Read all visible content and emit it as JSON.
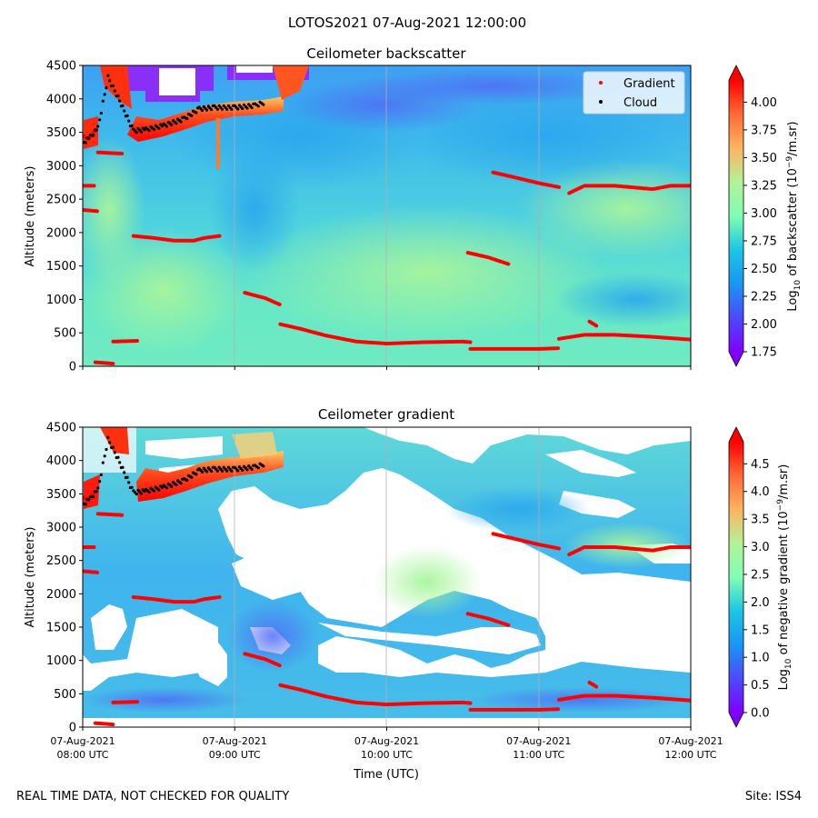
{
  "figure": {
    "suptitle": "LOTOS2021 07-Aug-2021 12:00:00",
    "footer_left": "REAL TIME DATA, NOT CHECKED FOR QUALITY",
    "footer_right": "Site: ISS4"
  },
  "chart_data": [
    {
      "type": "heatmap",
      "title": "Ceilometer backscatter",
      "xlabel": "",
      "ylabel": "Altitude (meters)",
      "x_range": [
        "2021-08-07T08:00:00Z",
        "2021-08-07T12:00:00Z"
      ],
      "x_tick_labels": [
        [
          "07-Aug-2021",
          "08:00 UTC"
        ],
        [
          "07-Aug-2021",
          "09:00 UTC"
        ],
        [
          "07-Aug-2021",
          "10:00 UTC"
        ],
        [
          "07-Aug-2021",
          "11:00 UTC"
        ],
        [
          "07-Aug-2021",
          "12:00 UTC"
        ]
      ],
      "x_tick_labels_visible": false,
      "ylim": [
        0,
        4500
      ],
      "y_ticks": [
        0,
        500,
        1000,
        1500,
        2000,
        2500,
        3000,
        3500,
        4000,
        4500
      ],
      "grid": "vertical",
      "colormap": "rainbow",
      "legend": {
        "placement": "top-right",
        "entries": [
          {
            "label": "Gradient",
            "color": "#ff0000",
            "marker": "dot"
          },
          {
            "label": "Cloud",
            "color": "#000000",
            "marker": "dot"
          }
        ]
      },
      "colorbar": {
        "label_parts": [
          "Log",
          "10",
          " of backscatter (10",
          "−9",
          "/m.sr)"
        ],
        "vmin": 1.75,
        "vmax": 4.2,
        "ticks": [
          1.75,
          2.0,
          2.25,
          2.5,
          2.75,
          3.0,
          3.25,
          3.5,
          3.75,
          4.0
        ],
        "tick_labels": [
          "1.75",
          "2.00",
          "2.25",
          "2.50",
          "2.75",
          "3.00",
          "3.25",
          "3.50",
          "3.75",
          "4.00"
        ],
        "extend": "both"
      },
      "gradient_layers": [
        {
          "t": [
            "08:00",
            "08:05"
          ],
          "alt": [
            2700,
            2700
          ]
        },
        {
          "t": [
            "08:00",
            "08:06"
          ],
          "alt": [
            2340,
            2320
          ]
        },
        {
          "t": [
            "08:06",
            "08:16"
          ],
          "alt": [
            3200,
            3180
          ]
        },
        {
          "t": [
            "08:20",
            "08:28",
            "08:36",
            "08:44",
            "08:48",
            "08:54"
          ],
          "alt": [
            1950,
            1920,
            1880,
            1880,
            1920,
            1950
          ]
        },
        {
          "t": [
            "08:12",
            "08:22"
          ],
          "alt": [
            370,
            380
          ]
        },
        {
          "t": [
            "08:05",
            "08:12"
          ],
          "alt": [
            60,
            40
          ]
        },
        {
          "t": [
            "09:04",
            "09:12",
            "09:18"
          ],
          "alt": [
            1100,
            1020,
            920
          ]
        },
        {
          "t": [
            "09:18",
            "09:26",
            "09:36",
            "09:48",
            "10:00",
            "10:15",
            "10:30",
            "10:33"
          ],
          "alt": [
            630,
            560,
            460,
            370,
            340,
            360,
            370,
            360
          ]
        },
        {
          "t": [
            "10:33",
            "10:45",
            "11:00",
            "11:08"
          ],
          "alt": [
            260,
            260,
            260,
            270
          ]
        },
        {
          "t": [
            "11:08",
            "11:18",
            "11:30",
            "11:45",
            "12:00"
          ],
          "alt": [
            410,
            470,
            470,
            440,
            400
          ]
        },
        {
          "t": [
            "11:20",
            "11:23"
          ],
          "alt": [
            670,
            600
          ]
        },
        {
          "t": [
            "10:32",
            "10:40",
            "10:48"
          ],
          "alt": [
            1700,
            1630,
            1530
          ]
        },
        {
          "t": [
            "10:42",
            "10:50",
            "11:00",
            "11:08"
          ],
          "alt": [
            2900,
            2830,
            2740,
            2680
          ]
        },
        {
          "t": [
            "11:12",
            "11:18",
            "11:30",
            "11:45",
            "11:52",
            "12:00"
          ],
          "alt": [
            2590,
            2700,
            2700,
            2650,
            2700,
            2700
          ]
        },
        {
          "t": [
            "07:59",
            "08:02",
            "08:05"
          ],
          "alt": [
            3480,
            3400,
            3530
          ]
        }
      ],
      "cloud_layer": {
        "t": [
          "08:00",
          "08:03",
          "08:06",
          "08:10",
          "08:14",
          "08:20",
          "08:25",
          "08:32",
          "08:40",
          "08:46",
          "08:52",
          "09:00",
          "09:08",
          "09:12"
        ],
        "alt": [
          3330,
          3430,
          3560,
          4320,
          4020,
          3520,
          3540,
          3600,
          3700,
          3850,
          3870,
          3870,
          3900,
          3950
        ]
      }
    },
    {
      "type": "heatmap",
      "title": "Ceilometer gradient",
      "xlabel": "Time (UTC)",
      "ylabel": "Altitude (meters)",
      "x_range": [
        "2021-08-07T08:00:00Z",
        "2021-08-07T12:00:00Z"
      ],
      "x_tick_labels": [
        [
          "07-Aug-2021",
          "08:00 UTC"
        ],
        [
          "07-Aug-2021",
          "09:00 UTC"
        ],
        [
          "07-Aug-2021",
          "10:00 UTC"
        ],
        [
          "07-Aug-2021",
          "11:00 UTC"
        ],
        [
          "07-Aug-2021",
          "12:00 UTC"
        ]
      ],
      "x_tick_labels_visible": true,
      "ylim": [
        0,
        4500
      ],
      "y_ticks": [
        0,
        500,
        1000,
        1500,
        2000,
        2500,
        3000,
        3500,
        4000,
        4500
      ],
      "grid": "vertical",
      "colormap": "rainbow",
      "colorbar": {
        "label_parts": [
          "Log",
          "10",
          " of negative gradient (10",
          "−9",
          "/m.sr)"
        ],
        "vmin": 0.0,
        "vmax": 4.9,
        "ticks": [
          0.0,
          0.5,
          1.0,
          1.5,
          2.0,
          2.5,
          3.0,
          3.5,
          4.0,
          4.5
        ],
        "tick_labels": [
          "0.0",
          "0.5",
          "1.0",
          "1.5",
          "2.0",
          "2.5",
          "3.0",
          "3.5",
          "4.0",
          "4.5"
        ],
        "extend": "both"
      }
    }
  ]
}
